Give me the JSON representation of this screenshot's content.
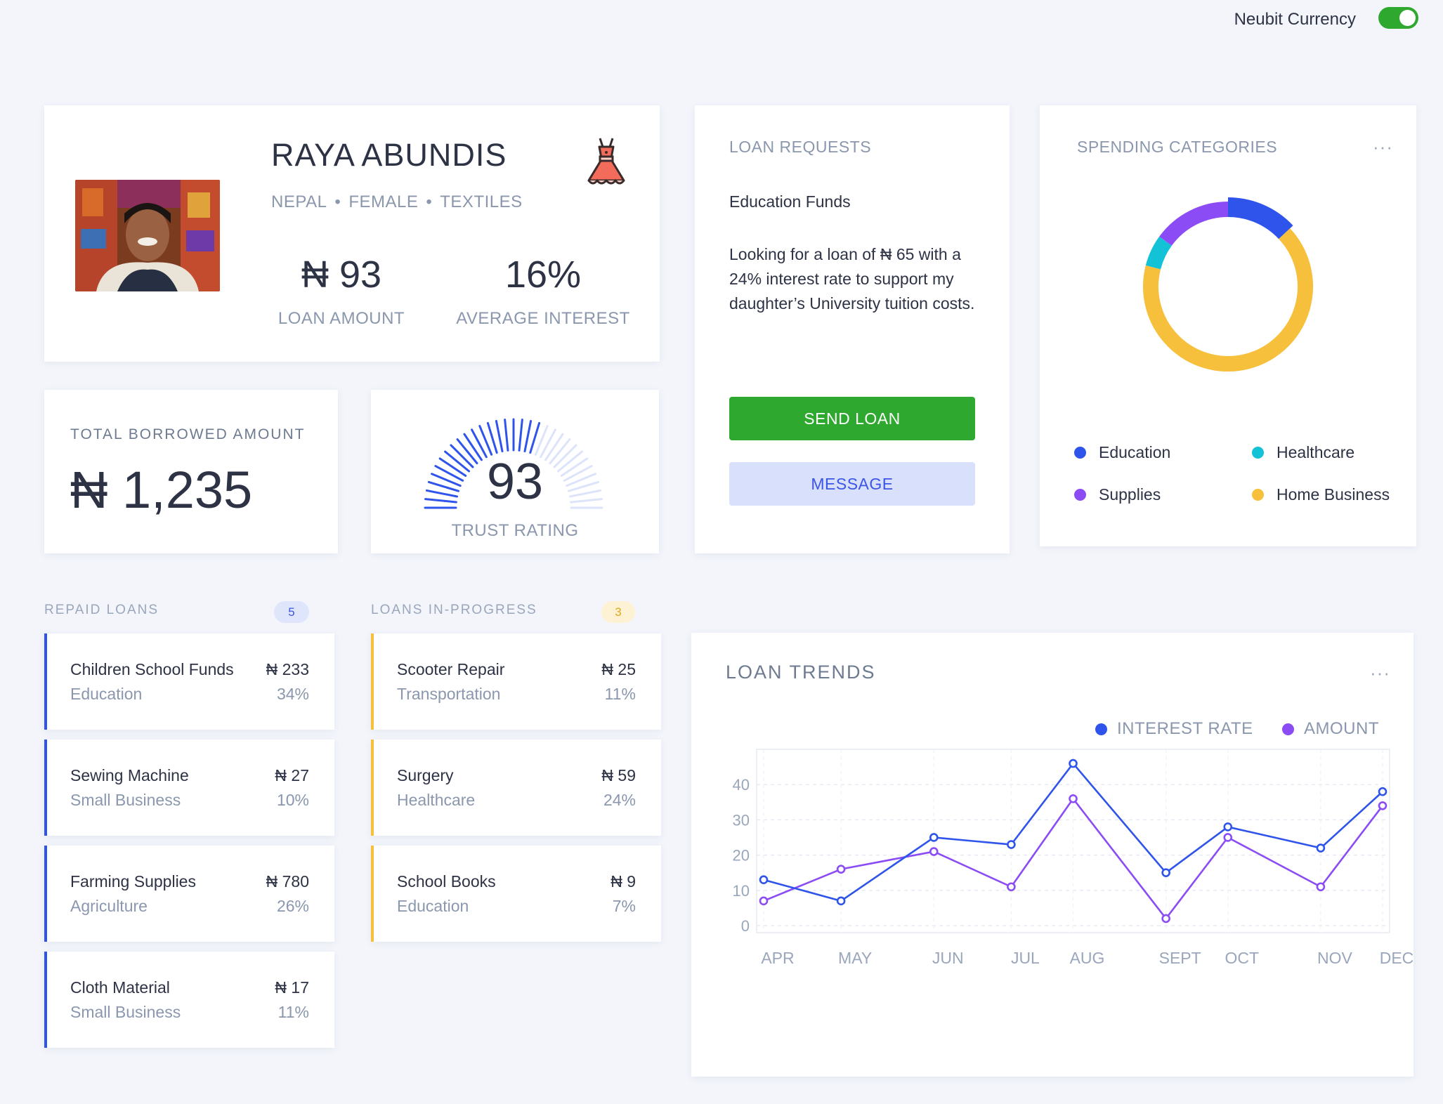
{
  "topbar": {
    "currency_label": "Neubit Currency",
    "currency_enabled": true
  },
  "profile": {
    "name": "RAYA ABUNDIS",
    "country": "NEPAL",
    "gender": "FEMALE",
    "sector": "TEXTILES",
    "dot": "•",
    "icon": "dress-icon",
    "loan_amount_value": "₦ 93",
    "loan_amount_label": "LOAN AMOUNT",
    "avg_interest_value": "16%",
    "avg_interest_label": "AVERAGE INTEREST"
  },
  "total_borrowed": {
    "label": "TOTAL BORROWED AMOUNT",
    "value": "₦ 1,235"
  },
  "trust": {
    "value": "93",
    "label": "TRUST RATING",
    "score_fraction": 0.93,
    "active_color": "#2f54eb",
    "inactive_color": "#dde4fa"
  },
  "loan_requests": {
    "title": "LOAN REQUESTS",
    "subtitle": "Education Funds",
    "description": "Looking for a loan of ₦ 65 with a 24% interest rate to support my daughter’s University tuition costs.",
    "send_label": "SEND LOAN",
    "message_label": "MESSAGE"
  },
  "spending": {
    "title": "SPENDING CATEGORIES",
    "more": "···",
    "items": [
      {
        "label": "Education",
        "color": "#2f54eb",
        "share": 0.13
      },
      {
        "label": "Healthcare",
        "color": "#13c2d6",
        "share": 0.06
      },
      {
        "label": "Supplies",
        "color": "#8b4cf6",
        "share": 0.15
      },
      {
        "label": "Home Business",
        "color": "#f7c03c",
        "share": 0.66
      }
    ]
  },
  "repaid": {
    "title": "REPAID LOANS",
    "count": "5",
    "accent": "#2f54eb",
    "items": [
      {
        "title": "Children School Funds",
        "category": "Education",
        "amount": "₦ 233",
        "rate": "34%"
      },
      {
        "title": "Sewing Machine",
        "category": "Small Business",
        "amount": "₦ 27",
        "rate": "10%"
      },
      {
        "title": "Farming Supplies",
        "category": "Agriculture",
        "amount": "₦ 780",
        "rate": "26%"
      },
      {
        "title": "Cloth Material",
        "category": "Small Business",
        "amount": "₦ 17",
        "rate": "11%"
      }
    ]
  },
  "in_progress": {
    "title": "LOANS IN-PROGRESS",
    "count": "3",
    "accent": "#f7c03c",
    "items": [
      {
        "title": "Scooter Repair",
        "category": "Transportation",
        "amount": "₦ 25",
        "rate": "11%"
      },
      {
        "title": "Surgery",
        "category": "Healthcare",
        "amount": "₦ 59",
        "rate": "24%"
      },
      {
        "title": "School Books",
        "category": "Education",
        "amount": "₦ 9",
        "rate": "7%"
      }
    ]
  },
  "trends": {
    "title": "LOAN TRENDS",
    "more": "···"
  },
  "chart_data": {
    "type": "line",
    "title": "LOAN TRENDS",
    "categories": [
      "APR",
      "MAY",
      "JUN",
      "JUL",
      "AUG",
      "SEPT",
      "OCT",
      "NOV",
      "DEC"
    ],
    "x_positions": [
      0.0,
      1.0,
      2.2,
      3.2,
      4.0,
      5.2,
      6.0,
      7.2,
      8.0
    ],
    "yticks": [
      0,
      10,
      20,
      30,
      40
    ],
    "ylim": [
      -2,
      50
    ],
    "grid": true,
    "legend_position": "top-right",
    "series": [
      {
        "name": "INTEREST RATE",
        "color": "#2f54eb",
        "values": [
          13,
          7,
          25,
          23,
          46,
          15,
          28,
          22,
          38
        ]
      },
      {
        "name": "AMOUNT",
        "color": "#8b4cf6",
        "values": [
          7,
          16,
          21,
          11,
          36,
          2,
          25,
          11,
          34
        ]
      }
    ]
  }
}
